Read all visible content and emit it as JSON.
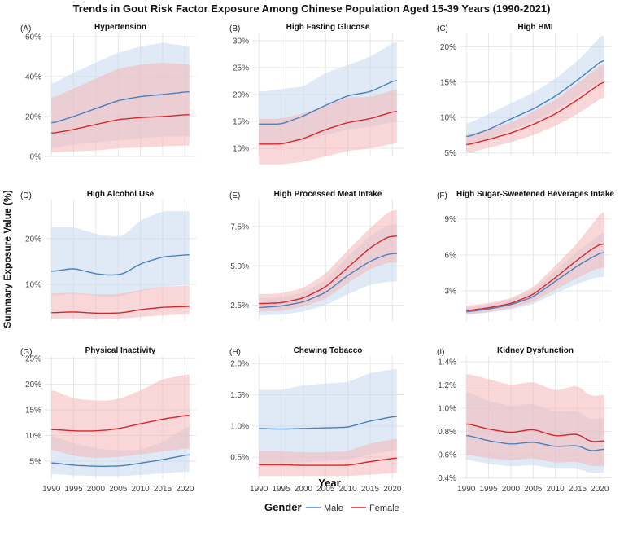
{
  "title": "Trends in Gout Risk Factor Exposure Among Chinese Population Aged 15-39 Years (1990-2021)",
  "ylabel": "Summary Exposure Value (%)",
  "xlabel": "Year",
  "legend": {
    "title": "Gender",
    "male": "Male",
    "female": "Female"
  },
  "colors": {
    "male": "#4a7fbd",
    "male_band": "#c6d9ee",
    "female": "#d7262b",
    "female_band": "#f4b7b8",
    "grid": "#e6e6e6"
  },
  "chart_data": [
    {
      "type": "line",
      "tag": "(A)",
      "title": "Hypertension",
      "x": [
        1990,
        1995,
        2000,
        2005,
        2010,
        2015,
        2021
      ],
      "xlim": [
        1988.5,
        2022.5
      ],
      "ylim": [
        0,
        62
      ],
      "yticks": [
        0,
        20,
        40,
        60
      ],
      "ytick_labels": [
        "0%",
        "20%",
        "40%",
        "60%"
      ],
      "series": [
        {
          "name": "Male",
          "values": [
            16.5,
            20,
            24,
            28,
            30,
            31,
            32.5
          ],
          "lower": [
            4,
            6,
            7,
            8,
            9,
            10,
            10
          ],
          "upper": [
            36,
            42,
            47,
            52,
            55,
            57,
            55
          ]
        },
        {
          "name": "Female",
          "values": [
            11.5,
            13.5,
            16,
            18.5,
            19.5,
            20,
            21
          ],
          "lower": [
            2,
            2.5,
            3,
            4,
            4.5,
            5,
            5.5
          ],
          "upper": [
            29,
            34,
            39,
            44,
            46,
            47,
            46
          ]
        }
      ]
    },
    {
      "type": "line",
      "tag": "(B)",
      "title": "High Fasting Glucose",
      "x": [
        1990,
        1995,
        2000,
        2005,
        2010,
        2015,
        2021
      ],
      "xlim": [
        1988.5,
        2022.5
      ],
      "ylim": [
        8.5,
        31.5
      ],
      "yticks": [
        10,
        15,
        20,
        25,
        30
      ],
      "ytick_labels": [
        "10%",
        "15%",
        "20%",
        "25%",
        "30%"
      ],
      "series": [
        {
          "name": "Male",
          "values": [
            14.5,
            14.5,
            16,
            18,
            19.8,
            20.5,
            22.8
          ],
          "lower": [
            10.5,
            10.5,
            11.5,
            12.5,
            13.5,
            14,
            15
          ],
          "upper": [
            20.5,
            21,
            21.5,
            24,
            25.5,
            27,
            30
          ]
        },
        {
          "name": "Female",
          "values": [
            10.8,
            10.8,
            11.8,
            13.5,
            14.8,
            15.5,
            17
          ],
          "lower": [
            7,
            7,
            7.5,
            8.5,
            9.5,
            10,
            11
          ],
          "upper": [
            15.5,
            15.5,
            16.5,
            18,
            19.5,
            19.5,
            21
          ]
        }
      ]
    },
    {
      "type": "line",
      "tag": "(C)",
      "title": "High BMI",
      "x": [
        1990,
        1995,
        2000,
        2005,
        2010,
        2015,
        2021
      ],
      "xlim": [
        1988.5,
        2022.5
      ],
      "ylim": [
        4.5,
        22
      ],
      "yticks": [
        5,
        10,
        15,
        20
      ],
      "ytick_labels": [
        "5%",
        "10%",
        "15%",
        "20%"
      ],
      "series": [
        {
          "name": "Male",
          "values": [
            7.2,
            8.3,
            9.8,
            11.2,
            13,
            15.3,
            18.3
          ],
          "lower": [
            6,
            7,
            8.2,
            9.5,
            11,
            13,
            15.5
          ],
          "upper": [
            9,
            10.5,
            12,
            13.5,
            15.5,
            18,
            22
          ]
        },
        {
          "name": "Female",
          "values": [
            6.1,
            6.9,
            7.8,
            9,
            10.5,
            12.5,
            15.2
          ],
          "lower": [
            5,
            5.7,
            6.5,
            7.5,
            8.8,
            10.5,
            13
          ],
          "upper": [
            7.5,
            8.3,
            9.3,
            10.8,
            12.5,
            14.8,
            17.8
          ]
        }
      ]
    },
    {
      "type": "line",
      "tag": "(D)",
      "title": "High Alcohol Use",
      "x": [
        1990,
        1995,
        2000,
        2003,
        2006,
        2010,
        2015,
        2021
      ],
      "xlim": [
        1988.5,
        2022.5
      ],
      "ylim": [
        2,
        28.5
      ],
      "yticks": [
        10,
        20
      ],
      "ytick_labels": [
        "10%",
        "20%"
      ],
      "series": [
        {
          "name": "Male",
          "values": [
            12.8,
            13.5,
            12.3,
            12,
            12.2,
            14.5,
            16,
            16.5
          ],
          "lower": [
            7.5,
            8,
            7.5,
            7.2,
            7.5,
            8.5,
            9.5,
            10
          ],
          "upper": [
            22.5,
            22.5,
            21,
            20.5,
            20.5,
            24,
            26,
            26
          ]
        },
        {
          "name": "Female",
          "values": [
            3.8,
            4,
            3.7,
            3.7,
            3.8,
            4.5,
            5,
            5.2
          ],
          "lower": [
            2.5,
            2.6,
            2.4,
            2.4,
            2.5,
            2.9,
            3.2,
            3.5
          ],
          "upper": [
            8,
            8.2,
            7.8,
            7.8,
            8,
            8.8,
            9.5,
            9.8
          ]
        }
      ]
    },
    {
      "type": "line",
      "tag": "(E)",
      "title": "High Processed Meat Intake",
      "x": [
        1990,
        1995,
        2000,
        2005,
        2010,
        2015,
        2019,
        2021
      ],
      "xlim": [
        1988.5,
        2022.5
      ],
      "ylim": [
        1.5,
        9.2
      ],
      "yticks": [
        2.5,
        5.0,
        7.5
      ],
      "ytick_labels": [
        "2.5%",
        "5.0%",
        "7.5%"
      ],
      "series": [
        {
          "name": "Male",
          "values": [
            2.35,
            2.45,
            2.7,
            3.3,
            4.4,
            5.3,
            5.75,
            5.8
          ],
          "lower": [
            1.85,
            1.9,
            2.1,
            2.5,
            3.2,
            3.8,
            4,
            4
          ],
          "upper": [
            2.95,
            3,
            3.3,
            4.1,
            5.6,
            6.9,
            7.6,
            7.7
          ]
        },
        {
          "name": "Female",
          "values": [
            2.6,
            2.65,
            2.95,
            3.65,
            4.9,
            6.15,
            6.85,
            6.9
          ],
          "lower": [
            2.1,
            2.15,
            2.4,
            2.9,
            3.9,
            4.8,
            5.2,
            5.2
          ],
          "upper": [
            3.2,
            3.25,
            3.6,
            4.5,
            6,
            7.4,
            8.4,
            8.6
          ]
        }
      ]
    },
    {
      "type": "line",
      "tag": "(F)",
      "title": "High Sugar-Sweetened Beverages Intake",
      "x": [
        1990,
        1995,
        2000,
        2005,
        2010,
        2015,
        2019,
        2021
      ],
      "xlim": [
        1988.5,
        2022.5
      ],
      "ylim": [
        0.5,
        10.6
      ],
      "yticks": [
        3,
        6,
        9
      ],
      "ytick_labels": [
        "3%",
        "6%",
        "9%"
      ],
      "series": [
        {
          "name": "Male",
          "values": [
            1.25,
            1.5,
            1.85,
            2.5,
            3.8,
            5.1,
            5.95,
            6.3
          ],
          "lower": [
            1,
            1.2,
            1.45,
            1.9,
            2.8,
            3.6,
            4.1,
            4.2
          ],
          "upper": [
            1.6,
            1.85,
            2.3,
            3.1,
            4.7,
            6.3,
            7.4,
            8
          ]
        },
        {
          "name": "Female",
          "values": [
            1.35,
            1.6,
            1.95,
            2.7,
            4.1,
            5.6,
            6.7,
            7
          ],
          "lower": [
            1.05,
            1.25,
            1.55,
            2.1,
            3.1,
            4.1,
            4.8,
            5
          ],
          "upper": [
            1.75,
            2,
            2.4,
            3.3,
            5.1,
            7,
            8.9,
            9.8
          ]
        }
      ]
    },
    {
      "type": "line",
      "tag": "(G)",
      "title": "Physical Inactivity",
      "x": [
        1990,
        1995,
        2000,
        2003,
        2006,
        2010,
        2015,
        2021
      ],
      "xlim": [
        1988.5,
        2022.5
      ],
      "ylim": [
        1.5,
        25.5
      ],
      "yticks": [
        5,
        10,
        15,
        20,
        25
      ],
      "ytick_labels": [
        "5%",
        "10%",
        "15%",
        "20%",
        "25%"
      ],
      "series": [
        {
          "name": "Male",
          "values": [
            4.7,
            4.2,
            4,
            4,
            4.1,
            4.6,
            5.3,
            6.3
          ],
          "lower": [
            2.5,
            2.2,
            2.1,
            2.1,
            2.1,
            2.3,
            2.6,
            3
          ],
          "upper": [
            10,
            8.5,
            7.5,
            7.2,
            7.1,
            7.2,
            8.7,
            12
          ]
        },
        {
          "name": "Female",
          "values": [
            11.2,
            10.9,
            10.9,
            11.1,
            11.5,
            12.3,
            13.2,
            14
          ],
          "lower": [
            7.3,
            6,
            5.6,
            5.7,
            5.9,
            6.3,
            6.9,
            7.5
          ],
          "upper": [
            19,
            17.2,
            16.8,
            16.8,
            17.4,
            18.8,
            21,
            22
          ]
        }
      ]
    },
    {
      "type": "line",
      "tag": "(H)",
      "title": "Chewing Tobacco",
      "x": [
        1990,
        1995,
        2000,
        2005,
        2010,
        2015,
        2021
      ],
      "xlim": [
        1988.5,
        2022.5
      ],
      "ylim": [
        0.15,
        2.12
      ],
      "yticks": [
        0.5,
        1.0,
        1.5,
        2.0
      ],
      "ytick_labels": [
        "0.5%",
        "1.0%",
        "1.5%",
        "2.0%"
      ],
      "series": [
        {
          "name": "Male",
          "values": [
            0.96,
            0.95,
            0.96,
            0.97,
            0.98,
            1.08,
            1.16
          ],
          "lower": [
            0.4,
            0.4,
            0.42,
            0.44,
            0.46,
            0.55,
            0.62
          ],
          "upper": [
            1.58,
            1.58,
            1.65,
            1.68,
            1.7,
            1.85,
            1.92
          ]
        },
        {
          "name": "Female",
          "values": [
            0.38,
            0.38,
            0.37,
            0.37,
            0.37,
            0.43,
            0.49
          ],
          "lower": [
            0.2,
            0.2,
            0.2,
            0.2,
            0.2,
            0.22,
            0.25
          ],
          "upper": [
            0.6,
            0.6,
            0.58,
            0.58,
            0.6,
            0.72,
            0.8
          ]
        }
      ]
    },
    {
      "type": "line",
      "tag": "(I)",
      "title": "Kidney Dysfunction",
      "x": [
        1990,
        1995,
        2000,
        2005,
        2010,
        2015,
        2018,
        2021
      ],
      "xlim": [
        1988.5,
        2022.5
      ],
      "ylim": [
        0.39,
        1.45
      ],
      "yticks": [
        0.4,
        0.6,
        0.8,
        1.0,
        1.2,
        1.4
      ],
      "ytick_labels": [
        "0.4%",
        "0.6%",
        "0.8%",
        "1.0%",
        "1.2%",
        "1.4%"
      ],
      "series": [
        {
          "name": "Male",
          "values": [
            0.77,
            0.72,
            0.69,
            0.71,
            0.67,
            0.68,
            0.63,
            0.65
          ],
          "lower": [
            0.56,
            0.52,
            0.5,
            0.51,
            0.48,
            0.48,
            0.44,
            0.45
          ],
          "upper": [
            1.15,
            1.06,
            1.02,
            1.04,
            0.97,
            0.98,
            0.9,
            0.92
          ]
        },
        {
          "name": "Female",
          "values": [
            0.87,
            0.82,
            0.79,
            0.82,
            0.76,
            0.78,
            0.71,
            0.72
          ],
          "lower": [
            0.6,
            0.57,
            0.55,
            0.57,
            0.53,
            0.54,
            0.5,
            0.5
          ],
          "upper": [
            1.3,
            1.25,
            1.2,
            1.23,
            1.15,
            1.2,
            1.1,
            1.12
          ]
        }
      ]
    }
  ],
  "xticks": [
    1990,
    1995,
    2000,
    2005,
    2010,
    2015,
    2020
  ],
  "xtick_labels": [
    "1990",
    "1995",
    "2000",
    "2005",
    "2010",
    "2015",
    "2020"
  ]
}
